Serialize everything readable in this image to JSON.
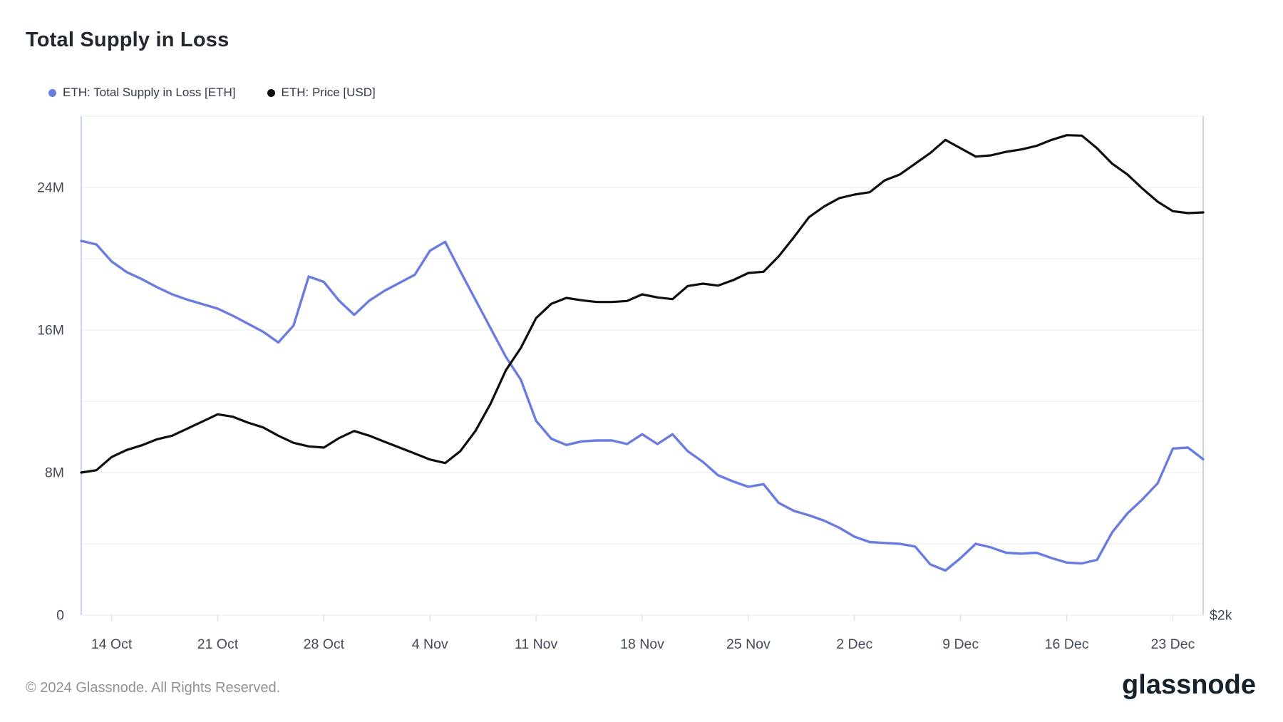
{
  "header": {
    "title": "Total Supply in Loss"
  },
  "footer": {
    "copyright": "© 2024 Glassnode. All Rights Reserved.",
    "brand": "glassnode"
  },
  "colors": {
    "supply_line": "#6b7ce0",
    "price_line": "#0e0e0e",
    "grid": "#f2f2f2",
    "axis_left_border": "#bcc7f0",
    "axis_right_border": "#c8c8c8",
    "tick_mark": "#dddddd",
    "axis_text": "#434b59"
  },
  "chart_data": {
    "type": "line",
    "title": "Total Supply in Loss",
    "legend_position": "top-left",
    "grid": "horizontal-only",
    "x": [
      "12 Oct",
      "13 Oct",
      "14 Oct",
      "15 Oct",
      "16 Oct",
      "17 Oct",
      "18 Oct",
      "19 Oct",
      "20 Oct",
      "21 Oct",
      "22 Oct",
      "23 Oct",
      "24 Oct",
      "25 Oct",
      "26 Oct",
      "27 Oct",
      "28 Oct",
      "29 Oct",
      "30 Oct",
      "31 Oct",
      "1 Nov",
      "2 Nov",
      "3 Nov",
      "4 Nov",
      "5 Nov",
      "6 Nov",
      "7 Nov",
      "8 Nov",
      "9 Nov",
      "10 Nov",
      "11 Nov",
      "12 Nov",
      "13 Nov",
      "14 Nov",
      "15 Nov",
      "16 Nov",
      "17 Nov",
      "18 Nov",
      "19 Nov",
      "20 Nov",
      "21 Nov",
      "22 Nov",
      "23 Nov",
      "24 Nov",
      "25 Nov",
      "26 Nov",
      "27 Nov",
      "28 Nov",
      "29 Nov",
      "30 Nov",
      "1 Dec",
      "2 Dec",
      "3 Dec",
      "4 Dec",
      "5 Dec",
      "6 Dec",
      "7 Dec",
      "8 Dec",
      "9 Dec",
      "10 Dec",
      "11 Dec",
      "12 Dec",
      "13 Dec",
      "14 Dec",
      "15 Dec",
      "16 Dec",
      "17 Dec",
      "18 Dec",
      "19 Dec",
      "20 Dec",
      "21 Dec",
      "22 Dec",
      "23 Dec",
      "24 Dec",
      "25 Dec"
    ],
    "x_ticks": [
      "14 Oct",
      "21 Oct",
      "28 Oct",
      "4 Nov",
      "11 Nov",
      "18 Nov",
      "25 Nov",
      "2 Dec",
      "9 Dec",
      "16 Dec",
      "23 Dec"
    ],
    "y_left": {
      "min": 0,
      "max": 28000000,
      "grid_step": 4000000,
      "ticks": [
        {
          "v": 0,
          "label": "0"
        },
        {
          "v": 8000000,
          "label": "8M"
        },
        {
          "v": 16000000,
          "label": "16M"
        },
        {
          "v": 24000000,
          "label": "24M"
        }
      ]
    },
    "y_right": {
      "min": 2000,
      "max": 4100,
      "ticks": [
        {
          "v": 2000,
          "label": "$2k"
        }
      ]
    },
    "series": [
      {
        "name": "ETH: Total Supply in Loss [ETH]",
        "axis": "left",
        "color": "#6b7ce0",
        "width": 3.4,
        "values": [
          21000000,
          20800000,
          19850000,
          19250000,
          18850000,
          18400000,
          18000000,
          17700000,
          17450000,
          17200000,
          16800000,
          16350000,
          15900000,
          15300000,
          16250000,
          19000000,
          18700000,
          17650000,
          16850000,
          17650000,
          18200000,
          18650000,
          19100000,
          20450000,
          20950000,
          19300000,
          17700000,
          16100000,
          14500000,
          13200000,
          10900000,
          9900000,
          9550000,
          9750000,
          9800000,
          9800000,
          9600000,
          10150000,
          9600000,
          10150000,
          9200000,
          8600000,
          7850000,
          7500000,
          7200000,
          7350000,
          6300000,
          5850000,
          5600000,
          5300000,
          4900000,
          4400000,
          4100000,
          4050000,
          4000000,
          3850000,
          2850000,
          2500000,
          3200000,
          4000000,
          3800000,
          3500000,
          3450000,
          3500000,
          3200000,
          2950000,
          2900000,
          3100000,
          4650000,
          5700000,
          6500000,
          7400000,
          9350000,
          9400000,
          8750000
        ]
      },
      {
        "name": "ETH: Price [USD]",
        "axis": "right",
        "color": "#0e0e0e",
        "width": 3.2,
        "values": [
          2600,
          2610,
          2665,
          2695,
          2715,
          2740,
          2755,
          2785,
          2815,
          2845,
          2835,
          2810,
          2790,
          2755,
          2725,
          2710,
          2705,
          2745,
          2775,
          2755,
          2730,
          2705,
          2680,
          2655,
          2640,
          2690,
          2775,
          2890,
          3030,
          3125,
          3250,
          3310,
          3335,
          3325,
          3318,
          3318,
          3322,
          3350,
          3337,
          3330,
          3385,
          3395,
          3387,
          3410,
          3440,
          3445,
          3510,
          3590,
          3675,
          3720,
          3755,
          3770,
          3780,
          3830,
          3855,
          3900,
          3945,
          4000,
          3965,
          3930,
          3935,
          3950,
          3960,
          3975,
          4000,
          4020,
          4018,
          3965,
          3900,
          3855,
          3795,
          3740,
          3700,
          3692,
          3695
        ]
      }
    ]
  }
}
